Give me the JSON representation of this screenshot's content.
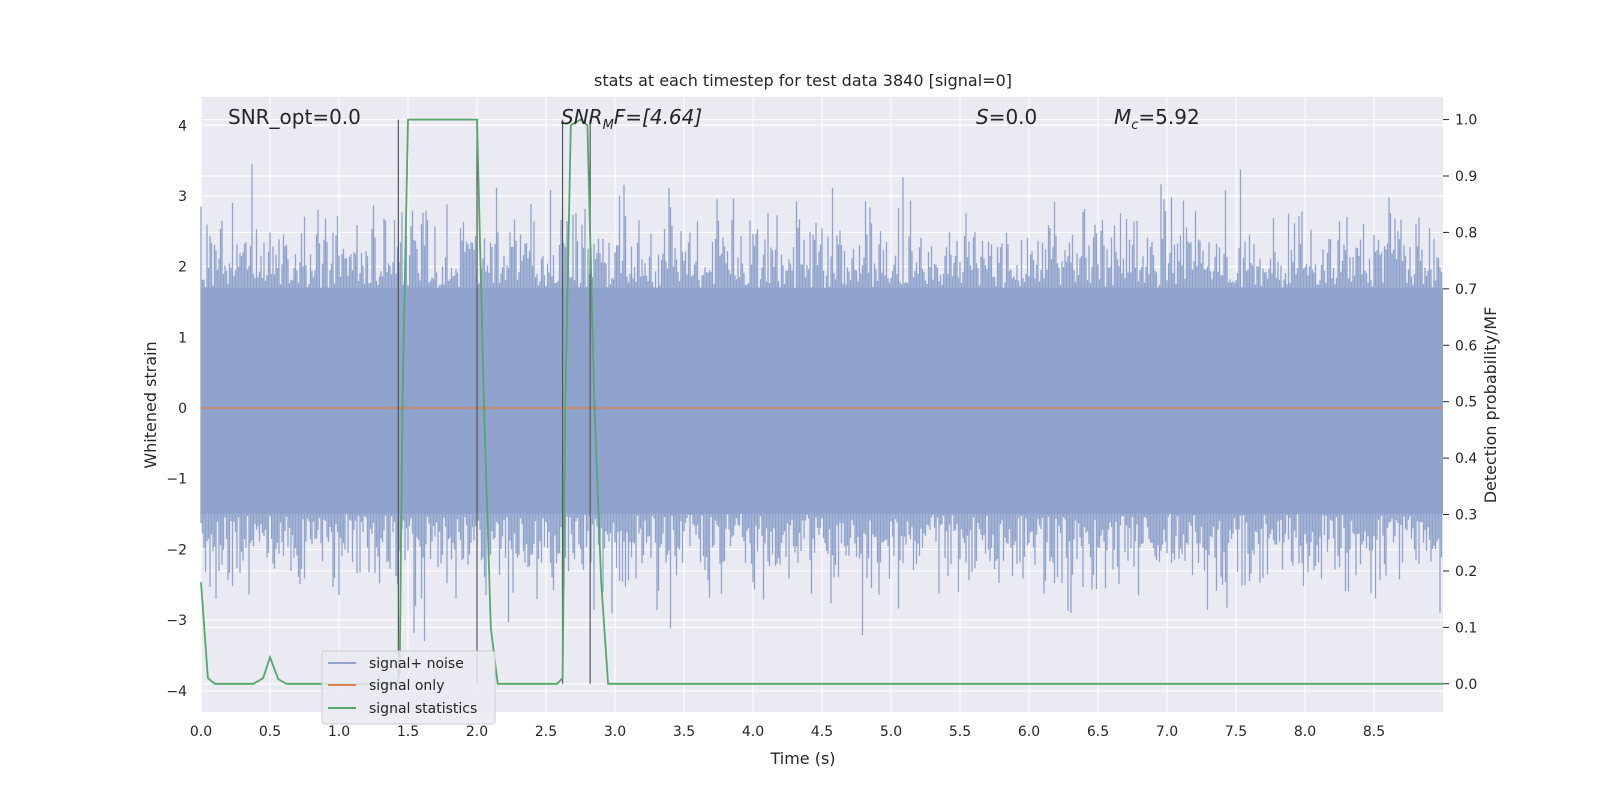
{
  "chart_data": {
    "type": "line",
    "title": "stats at each timestep for test data 3840 [signal=0]",
    "xlabel": "Time (s)",
    "ylabel": "Whitened strain",
    "y2label": "Detection probability/MF",
    "xlim": [
      0,
      9.0
    ],
    "ylim": [
      -4.3,
      4.4
    ],
    "y2lim": [
      -0.05,
      1.04
    ],
    "x_ticks": [
      0.0,
      0.5,
      1.0,
      1.5,
      2.0,
      2.5,
      3.0,
      3.5,
      4.0,
      4.5,
      5.0,
      5.5,
      6.0,
      6.5,
      7.0,
      7.5,
      8.0,
      8.5
    ],
    "y_ticks": [
      -4,
      -3,
      -2,
      -1,
      0,
      1,
      2,
      3,
      4
    ],
    "y_tick_labels": [
      "−4",
      "−3",
      "−2",
      "−1",
      "0",
      "1",
      "2",
      "3",
      "4"
    ],
    "y2_ticks": [
      0.0,
      0.1,
      0.2,
      0.3,
      0.4,
      0.5,
      0.6,
      0.7,
      0.8,
      0.9,
      1.0
    ],
    "grid": true,
    "legend_position": "lower-left",
    "annotations": {
      "snr_opt": "SNR_opt=0.0",
      "snr_mf_prefix": "SNR",
      "snr_mf_sub": "M",
      "snr_mf_suffix": "F=[4.64]",
      "s_prefix": "S",
      "s_suffix": "=0.0",
      "mc_prefix": "M",
      "mc_sub": "c",
      "mc_suffix": "=5.92"
    },
    "vertical_lines_x": [
      1.43,
      2.0,
      2.62,
      2.82
    ],
    "series": [
      {
        "name": "signal+ noise",
        "color": "#8fa3cc",
        "style": "dense noise, roughly symmetric about 0, amplitude mostly within ±2 with spikes to about ±3.7",
        "band_upper": 1.7,
        "band_lower": -1.5,
        "max": 4.0,
        "min": -3.8
      },
      {
        "name": "signal only",
        "color": "#dd8452",
        "x": [
          0.0,
          9.0
        ],
        "y": [
          0.0,
          0.0
        ]
      },
      {
        "name": "signal statistics",
        "color": "#55a868",
        "axis": "right",
        "x": [
          0.0,
          0.05,
          0.1,
          0.38,
          0.45,
          0.5,
          0.56,
          0.62,
          1.42,
          1.44,
          1.46,
          1.5,
          2.0,
          2.05,
          2.1,
          2.15,
          2.58,
          2.62,
          2.64,
          2.68,
          2.75,
          2.8,
          2.85,
          2.9,
          2.95,
          9.0
        ],
        "y": [
          0.18,
          0.01,
          0.0,
          0.0,
          0.01,
          0.047,
          0.008,
          0.0,
          0.0,
          0.02,
          0.5,
          1.0,
          1.0,
          0.5,
          0.1,
          0.0,
          0.0,
          0.01,
          0.5,
          0.99,
          1.0,
          0.99,
          0.5,
          0.18,
          0.0,
          0.0
        ]
      }
    ]
  },
  "colors": {
    "background": "#eaeaf2",
    "grid": "#ffffff",
    "noise": "#8fa3cc",
    "signal": "#dd8452",
    "stat": "#55a868",
    "vline": "#555555"
  }
}
